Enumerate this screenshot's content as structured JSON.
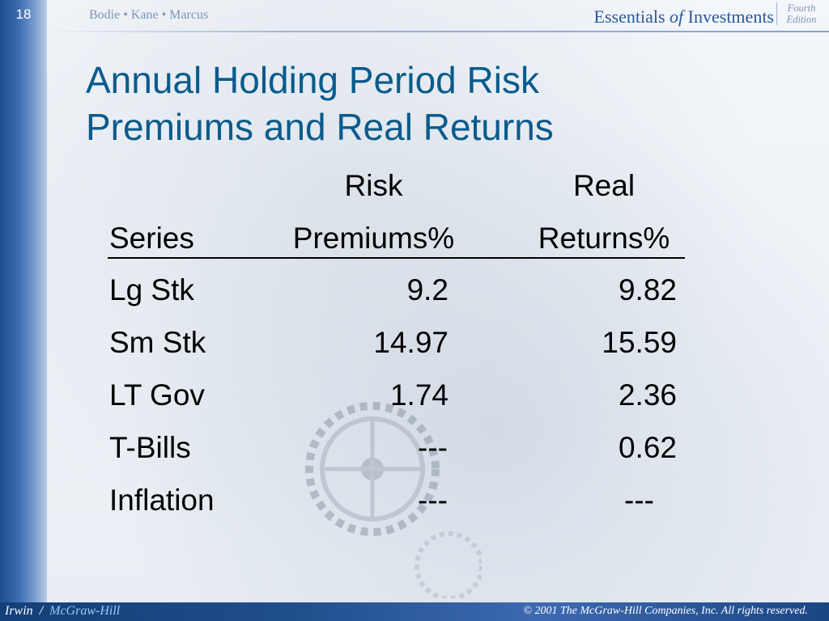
{
  "header": {
    "page_number": "18",
    "authors": "Bodie • Kane • Marcus",
    "book_title_part1": "Essentials ",
    "book_title_part2": "of",
    "book_title_part3": " Investments",
    "edition_line1": "Fourth",
    "edition_line2": "Edition"
  },
  "title": {
    "line1": "Annual Holding Period Risk",
    "line2": "Premiums and Real Returns"
  },
  "table": {
    "header_top": [
      "",
      "Risk",
      "Real"
    ],
    "header_bottom": [
      "Series",
      "Premiums%",
      "Returns%"
    ],
    "rows": [
      {
        "series": "Lg Stk",
        "risk_premium": "9.2",
        "real_return": "9.82"
      },
      {
        "series": "Sm Stk",
        "risk_premium": "14.97",
        "real_return": "15.59"
      },
      {
        "series": "LT Gov",
        "risk_premium": "1.74",
        "real_return": "2.36"
      },
      {
        "series": "T-Bills",
        "risk_premium": "---",
        "real_return": "0.62"
      },
      {
        "series": "Inflation",
        "risk_premium": "---",
        "real_return": "---"
      }
    ]
  },
  "footer": {
    "publisher_a": "Irwin",
    "publisher_sep": "  /  ",
    "publisher_b": "McGraw-Hill",
    "copyright": "© 2001 The McGraw-Hill Companies, Inc. All rights reserved."
  },
  "colors": {
    "title": "#0a5b8c",
    "left_bar": "#1d4f8f",
    "footer_bar": "#1f4e8c"
  }
}
